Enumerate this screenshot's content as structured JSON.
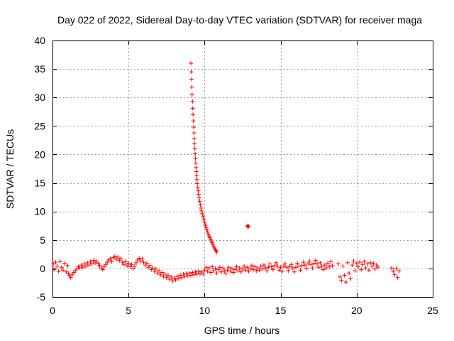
{
  "chart_data": {
    "type": "scatter",
    "title": "Day 022 of 2022, Sidereal Day-to-day VTEC variation (SDTVAR) for receiver maga",
    "xlabel": "GPS time / hours",
    "ylabel": "SDTVAR / TECUs",
    "xlim": [
      0,
      25
    ],
    "ylim": [
      -5,
      40
    ],
    "xticks": [
      0,
      5,
      10,
      15,
      20,
      25
    ],
    "yticks": [
      -5,
      0,
      5,
      10,
      15,
      20,
      25,
      30,
      35,
      40
    ],
    "xtick_labels": [
      "0",
      "5",
      "10",
      "15",
      "20",
      "25"
    ],
    "ytick_labels": [
      "-5",
      "0",
      "5",
      "10",
      "15",
      "20",
      "25",
      "30",
      "35",
      "40"
    ],
    "grid": true,
    "marker": "+",
    "color": "#ff0000",
    "series": [
      {
        "name": "SDTVAR",
        "points": [
          [
            0.05,
            0.8
          ],
          [
            0.1,
            -0.2
          ],
          [
            0.2,
            1.1
          ],
          [
            0.3,
            0.4
          ],
          [
            0.4,
            -0.5
          ],
          [
            0.5,
            1.2
          ],
          [
            0.6,
            0.2
          ],
          [
            0.7,
            -0.3
          ],
          [
            0.8,
            0.9
          ],
          [
            0.9,
            -0.6
          ],
          [
            1.0,
            0.5
          ],
          [
            1.05,
            -0.9
          ],
          [
            1.1,
            -1.3
          ],
          [
            1.2,
            -1.6
          ],
          [
            1.3,
            -1.1
          ],
          [
            1.4,
            -0.7
          ],
          [
            1.5,
            -0.4
          ],
          [
            1.6,
            -0.1
          ],
          [
            1.7,
            0.3
          ],
          [
            1.8,
            0.1
          ],
          [
            1.9,
            0.6
          ],
          [
            2.0,
            0.2
          ],
          [
            2.1,
            0.8
          ],
          [
            2.2,
            0.4
          ],
          [
            2.3,
            1.0
          ],
          [
            2.4,
            0.6
          ],
          [
            2.5,
            1.2
          ],
          [
            2.6,
            0.8
          ],
          [
            2.7,
            1.4
          ],
          [
            2.8,
            1.0
          ],
          [
            2.9,
            1.3
          ],
          [
            3.0,
            0.9
          ],
          [
            3.1,
            0.5
          ],
          [
            3.2,
            0.1
          ],
          [
            3.3,
            -0.2
          ],
          [
            3.4,
            0.3
          ],
          [
            3.5,
            0.7
          ],
          [
            3.6,
            1.1
          ],
          [
            3.7,
            1.5
          ],
          [
            3.8,
            1.7
          ],
          [
            3.9,
            1.2
          ],
          [
            4.0,
            1.9
          ],
          [
            4.1,
            2.1
          ],
          [
            4.2,
            1.6
          ],
          [
            4.3,
            2.0
          ],
          [
            4.4,
            1.4
          ],
          [
            4.5,
            1.8
          ],
          [
            4.6,
            1.1
          ],
          [
            4.7,
            0.7
          ],
          [
            4.8,
            1.2
          ],
          [
            4.9,
            0.5
          ],
          [
            5.0,
            0.9
          ],
          [
            5.1,
            0.3
          ],
          [
            5.2,
            0.7
          ],
          [
            5.3,
            0.0
          ],
          [
            5.4,
            0.4
          ],
          [
            5.5,
            1.0
          ],
          [
            5.6,
            1.5
          ],
          [
            5.7,
            1.8
          ],
          [
            5.8,
            1.3
          ],
          [
            5.9,
            1.7
          ],
          [
            6.0,
            1.1
          ],
          [
            6.1,
            0.6
          ],
          [
            6.2,
            0.9
          ],
          [
            6.3,
            0.2
          ],
          [
            6.4,
            0.5
          ],
          [
            6.5,
            -0.2
          ],
          [
            6.6,
            0.1
          ],
          [
            6.7,
            -0.5
          ],
          [
            6.8,
            -0.1
          ],
          [
            6.9,
            -0.8
          ],
          [
            7.0,
            -0.4
          ],
          [
            7.1,
            -1.1
          ],
          [
            7.2,
            -0.7
          ],
          [
            7.3,
            -1.4
          ],
          [
            7.4,
            -1.0
          ],
          [
            7.5,
            -1.6
          ],
          [
            7.6,
            -1.2
          ],
          [
            7.7,
            -1.9
          ],
          [
            7.8,
            -1.5
          ],
          [
            7.9,
            -2.2
          ],
          [
            8.0,
            -1.7
          ],
          [
            8.1,
            -2.0
          ],
          [
            8.2,
            -1.4
          ],
          [
            8.3,
            -1.8
          ],
          [
            8.4,
            -1.2
          ],
          [
            8.5,
            -1.6
          ],
          [
            8.6,
            -1.0
          ],
          [
            8.7,
            -1.4
          ],
          [
            8.8,
            -0.9
          ],
          [
            8.9,
            -1.3
          ],
          [
            9.0,
            -0.8
          ],
          [
            9.1,
            -1.2
          ],
          [
            9.2,
            -0.7
          ],
          [
            9.3,
            -1.1
          ],
          [
            9.4,
            -0.6
          ],
          [
            9.5,
            -1.0
          ],
          [
            9.6,
            -0.5
          ],
          [
            9.7,
            -0.9
          ],
          [
            9.8,
            -0.6
          ],
          [
            9.9,
            -1.0
          ],
          [
            10.0,
            -0.3
          ],
          [
            10.1,
            0.2
          ],
          [
            10.2,
            -0.5
          ],
          [
            10.3,
            0.1
          ],
          [
            10.4,
            -0.7
          ],
          [
            10.5,
            0.3
          ],
          [
            10.6,
            -0.4
          ],
          [
            10.7,
            0.0
          ],
          [
            10.8,
            -0.8
          ],
          [
            10.9,
            -0.2
          ],
          [
            11.0,
            0.2
          ],
          [
            11.1,
            -0.6
          ],
          [
            11.2,
            0.1
          ],
          [
            11.3,
            -0.4
          ],
          [
            11.4,
            -0.9
          ],
          [
            11.5,
            -0.3
          ],
          [
            11.6,
            0.2
          ],
          [
            11.7,
            -0.5
          ],
          [
            11.8,
            0.0
          ],
          [
            11.9,
            -0.7
          ],
          [
            12.0,
            -0.2
          ],
          [
            12.1,
            0.3
          ],
          [
            12.2,
            -0.4
          ],
          [
            12.3,
            0.1
          ],
          [
            12.4,
            -0.6
          ],
          [
            12.5,
            -0.1
          ],
          [
            12.6,
            0.4
          ],
          [
            12.7,
            -0.3
          ],
          [
            12.8,
            0.2
          ],
          [
            12.9,
            -0.5
          ],
          [
            13.0,
            0.0
          ],
          [
            13.1,
            0.5
          ],
          [
            13.2,
            -0.2
          ],
          [
            13.3,
            0.3
          ],
          [
            13.4,
            -0.4
          ],
          [
            13.5,
            0.1
          ],
          [
            13.6,
            -0.3
          ],
          [
            13.7,
            0.4
          ],
          [
            13.8,
            -0.1
          ],
          [
            13.9,
            0.6
          ],
          [
            14.0,
            0.1
          ],
          [
            14.1,
            -0.4
          ],
          [
            14.2,
            0.2
          ],
          [
            14.3,
            0.8
          ],
          [
            14.4,
            0.3
          ],
          [
            14.5,
            -0.2
          ],
          [
            14.6,
            0.5
          ],
          [
            14.7,
            1.0
          ],
          [
            14.8,
            0.4
          ],
          [
            14.9,
            -0.3
          ],
          [
            15.0,
            0.2
          ],
          [
            15.1,
            -0.5
          ],
          [
            15.2,
            0.4
          ],
          [
            15.3,
            0.8
          ],
          [
            15.4,
            0.2
          ],
          [
            15.5,
            -0.4
          ],
          [
            15.6,
            0.3
          ],
          [
            15.7,
            0.7
          ],
          [
            15.8,
            0.1
          ],
          [
            15.9,
            -0.6
          ],
          [
            16.0,
            0.2
          ],
          [
            16.1,
            0.9
          ],
          [
            16.2,
            0.4
          ],
          [
            16.3,
            -0.3
          ],
          [
            16.4,
            0.5
          ],
          [
            16.5,
            1.1
          ],
          [
            16.6,
            0.6
          ],
          [
            16.7,
            0.0
          ],
          [
            16.8,
            0.8
          ],
          [
            16.9,
            1.3
          ],
          [
            17.0,
            0.7
          ],
          [
            17.1,
            0.1
          ],
          [
            17.2,
            0.9
          ],
          [
            17.3,
            1.4
          ],
          [
            17.4,
            0.8
          ],
          [
            17.5,
            0.2
          ],
          [
            17.6,
            1.0
          ],
          [
            17.7,
            0.4
          ],
          [
            17.8,
            -0.2
          ],
          [
            17.9,
            0.6
          ],
          [
            18.0,
            0.1
          ],
          [
            18.1,
            0.9
          ],
          [
            18.2,
            0.3
          ],
          [
            18.3,
            1.2
          ],
          [
            18.4,
            0.5
          ],
          [
            18.8,
            0.8
          ],
          [
            18.9,
            -1.5
          ],
          [
            19.0,
            -2.1
          ],
          [
            19.1,
            0.4
          ],
          [
            19.2,
            -1.2
          ],
          [
            19.3,
            -2.4
          ],
          [
            19.4,
            1.0
          ],
          [
            19.5,
            -0.8
          ],
          [
            19.6,
            -1.8
          ],
          [
            19.7,
            0.6
          ],
          [
            19.8,
            1.3
          ],
          [
            19.9,
            -0.4
          ],
          [
            20.0,
            0.9
          ],
          [
            20.1,
            0.3
          ],
          [
            20.2,
            1.1
          ],
          [
            20.3,
            -0.2
          ],
          [
            20.4,
            0.7
          ],
          [
            20.5,
            1.2
          ],
          [
            20.6,
            0.1
          ],
          [
            20.7,
            0.8
          ],
          [
            20.8,
            -0.3
          ],
          [
            20.9,
            1.0
          ],
          [
            21.0,
            0.4
          ],
          [
            21.1,
            0.9
          ],
          [
            21.2,
            -0.1
          ],
          [
            21.3,
            0.6
          ],
          [
            21.4,
            0.2
          ],
          [
            22.3,
            0.1
          ],
          [
            22.4,
            -0.5
          ],
          [
            22.5,
            -1.1
          ],
          [
            22.6,
            0.0
          ],
          [
            22.7,
            -1.6
          ],
          [
            22.8,
            -0.4
          ],
          [
            9.1,
            36.0
          ],
          [
            9.12,
            34.5
          ],
          [
            9.14,
            33.2
          ],
          [
            9.16,
            31.8
          ],
          [
            9.18,
            30.5
          ],
          [
            9.2,
            29.3
          ],
          [
            9.22,
            28.1
          ],
          [
            9.24,
            27.0
          ],
          [
            9.26,
            25.9
          ],
          [
            9.28,
            24.8
          ],
          [
            9.3,
            23.8
          ],
          [
            9.32,
            22.8
          ],
          [
            9.34,
            21.9
          ],
          [
            9.36,
            21.0
          ],
          [
            9.38,
            20.1
          ],
          [
            9.4,
            19.3
          ],
          [
            9.42,
            18.5
          ],
          [
            9.44,
            17.7
          ],
          [
            9.46,
            17.0
          ],
          [
            9.48,
            16.3
          ],
          [
            9.5,
            15.6
          ],
          [
            9.52,
            14.9
          ],
          [
            9.55,
            14.2
          ],
          [
            9.58,
            13.6
          ],
          [
            9.61,
            13.0
          ],
          [
            9.64,
            12.4
          ],
          [
            9.68,
            11.8
          ],
          [
            9.72,
            11.2
          ],
          [
            9.76,
            10.6
          ],
          [
            9.8,
            10.1
          ],
          [
            9.85,
            9.6
          ],
          [
            9.9,
            9.1
          ],
          [
            9.95,
            8.6
          ],
          [
            10.0,
            8.1
          ],
          [
            10.05,
            7.6
          ],
          [
            10.1,
            7.2
          ],
          [
            10.15,
            6.8
          ],
          [
            10.2,
            6.4
          ],
          [
            10.25,
            6.0
          ],
          [
            10.3,
            5.7
          ],
          [
            10.35,
            5.4
          ],
          [
            10.4,
            5.1
          ],
          [
            10.45,
            4.8
          ],
          [
            10.5,
            4.5
          ],
          [
            10.55,
            4.2
          ],
          [
            10.6,
            3.9
          ],
          [
            10.65,
            3.6
          ],
          [
            10.7,
            3.3
          ],
          [
            10.75,
            3.1
          ],
          [
            10.8,
            2.9
          ],
          [
            12.8,
            7.5
          ],
          [
            12.85,
            7.3
          ],
          [
            12.9,
            7.4
          ]
        ]
      }
    ]
  }
}
